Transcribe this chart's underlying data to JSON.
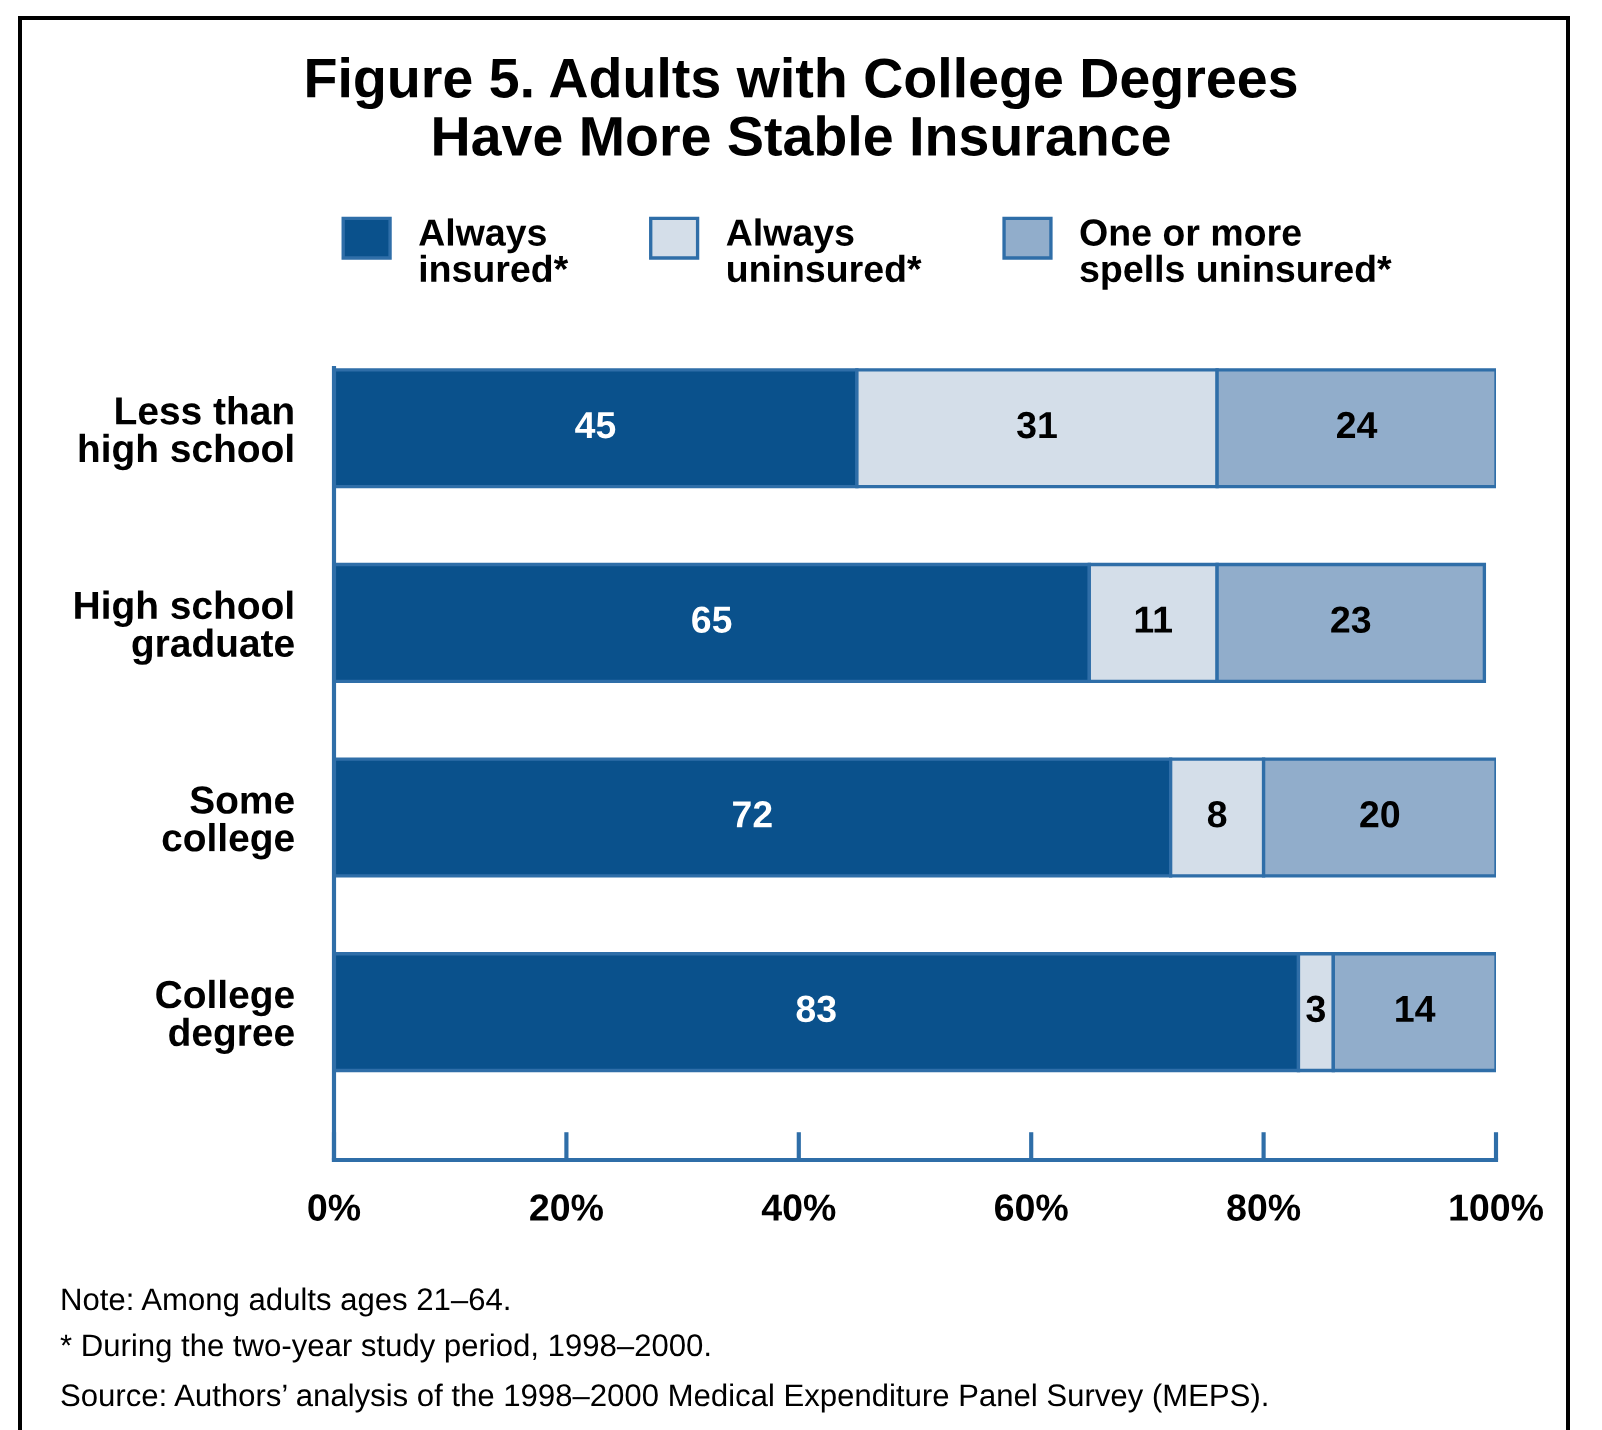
{
  "chart_data": {
    "type": "bar",
    "orientation": "horizontal",
    "stacked": true,
    "title": "Figure 5. Adults with College Degrees\nHave More Stable Insurance",
    "categories": [
      "Less than\nhigh school",
      "High school\ngraduate",
      "Some\ncollege",
      "College\ndegree"
    ],
    "series": [
      {
        "name": "Always\ninsured*",
        "color": "#0a518c",
        "values": [
          45,
          65,
          72,
          83
        ]
      },
      {
        "name": "Always\nuninsured*",
        "color": "#d4dee9",
        "values": [
          31,
          11,
          8,
          3
        ]
      },
      {
        "name": "One or more\nspells uninsured*",
        "color": "#91adcb",
        "values": [
          24,
          23,
          20,
          14
        ]
      }
    ],
    "xlim": [
      0,
      100
    ],
    "xticks": [
      {
        "value": 0,
        "label": "0%"
      },
      {
        "value": 20,
        "label": "20%"
      },
      {
        "value": 40,
        "label": "40%"
      },
      {
        "value": 60,
        "label": "60%"
      },
      {
        "value": 80,
        "label": "80%"
      },
      {
        "value": 100,
        "label": "100%"
      }
    ],
    "data_labels": true,
    "legend": "top",
    "annotations": [
      "Note: Among adults ages 21–64.",
      "* During the two-year study period, 1998–2000.",
      "Source: Authors’ analysis of the 1998–2000 Medical Expenditure Panel Survey (MEPS)."
    ]
  }
}
